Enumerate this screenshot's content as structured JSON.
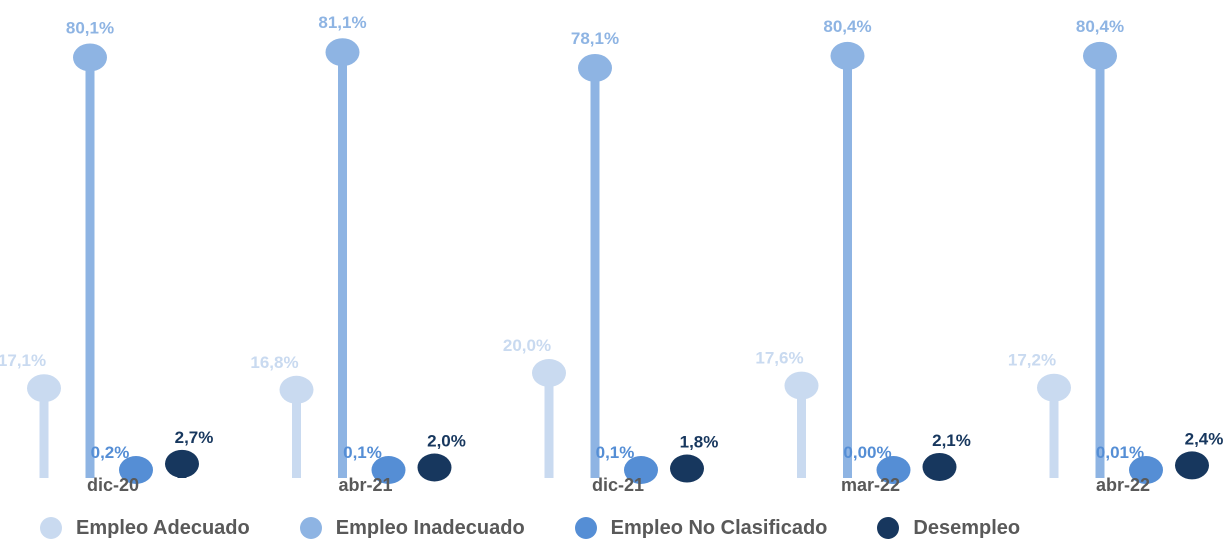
{
  "chart_data": {
    "type": "lollipop",
    "categories": [
      "dic-20",
      "abr-21",
      "dic-21",
      "mar-22",
      "abr-22"
    ],
    "series": [
      {
        "name": "Empleo Adecuado",
        "color": "#C9DAF0",
        "values": [
          17.1,
          16.8,
          20.0,
          17.6,
          17.2
        ],
        "labels": [
          "17,1%",
          "16,8%",
          "20,0%",
          "17,6%",
          "17,2%"
        ]
      },
      {
        "name": "Empleo Inadecuado",
        "color": "#8EB4E3",
        "values": [
          80.1,
          81.1,
          78.1,
          80.4,
          80.4
        ],
        "labels": [
          "80,1%",
          "81,1%",
          "78,1%",
          "80,4%",
          "80,4%"
        ]
      },
      {
        "name": "Empleo No Clasificado",
        "color": "#558ED5",
        "values": [
          0.2,
          0.1,
          0.1,
          0.0,
          0.01
        ],
        "labels": [
          "0,2%",
          "0,1%",
          "0,1%",
          "0,00%",
          "0,01%"
        ]
      },
      {
        "name": "Desempleo",
        "color": "#17375E",
        "values": [
          2.7,
          2.0,
          1.8,
          2.1,
          2.4
        ],
        "labels": [
          "2,7%",
          "2,0%",
          "1,8%",
          "2,1%",
          "2,4%"
        ]
      }
    ],
    "ylim": [
      0,
      100
    ],
    "grid": false,
    "legend_position": "bottom"
  }
}
